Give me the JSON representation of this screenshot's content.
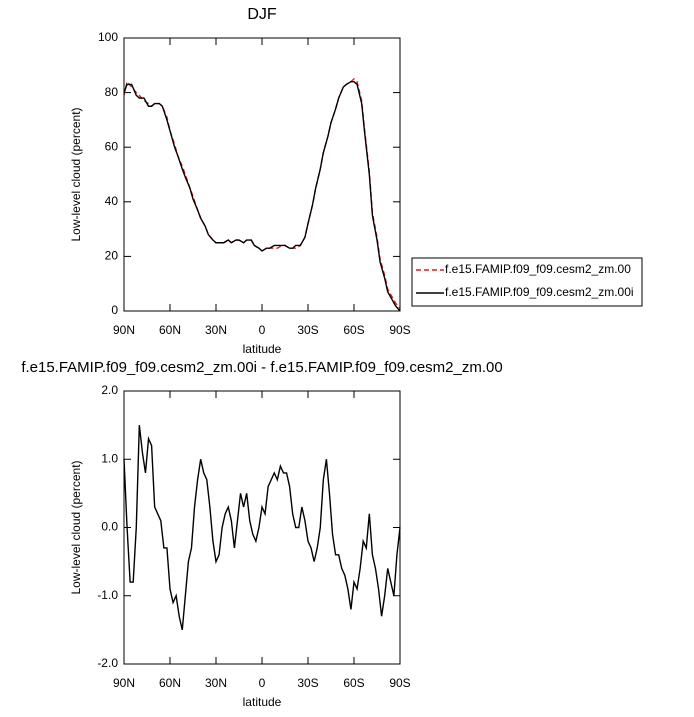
{
  "chart_data": [
    {
      "type": "line",
      "title": "DJF",
      "xlabel": "latitude",
      "ylabel": "Low-level cloud (percent)",
      "x": [
        90,
        88,
        85,
        82,
        80,
        77,
        74,
        72,
        70,
        67,
        65,
        62,
        60,
        57,
        55,
        52,
        50,
        47,
        45,
        42,
        40,
        37,
        35,
        32,
        30,
        27,
        25,
        22,
        20,
        17,
        15,
        12,
        10,
        7,
        5,
        2,
        0,
        -3,
        -5,
        -8,
        -10,
        -13,
        -15,
        -18,
        -20,
        -22,
        -25,
        -28,
        -30,
        -33,
        -35,
        -38,
        -40,
        -43,
        -45,
        -48,
        -50,
        -53,
        -55,
        -58,
        -60,
        -62,
        -65,
        -67,
        -70,
        -72,
        -75,
        -77,
        -80,
        -82,
        -85,
        -87,
        -90
      ],
      "series": [
        {
          "name": "f.e15.FAMIP.f09_f09.cesm2_zm.00",
          "color": "#e41a1c",
          "line_style": "dashed",
          "values": [
            79,
            84,
            82,
            80,
            79,
            77,
            76,
            75,
            76,
            76,
            75,
            71,
            66,
            61,
            57,
            53,
            50,
            45,
            42,
            37,
            34,
            31,
            28,
            26,
            25,
            25,
            25,
            26,
            25,
            26,
            26,
            25,
            26,
            26,
            24,
            23,
            22,
            23,
            23,
            23,
            23,
            24,
            24,
            23,
            23,
            23,
            24,
            27,
            32,
            39,
            45,
            52,
            58,
            64,
            69,
            74,
            78,
            82,
            83,
            84,
            85,
            84,
            77,
            66,
            51,
            36,
            27,
            19,
            13,
            8,
            5,
            3,
            1
          ]
        },
        {
          "name": "f.e15.FAMIP.f09_f09.cesm2_zm.00i",
          "color": "#000000",
          "line_style": "solid",
          "values": [
            80,
            83,
            83,
            79,
            78,
            78,
            75,
            75,
            76,
            76,
            75,
            70,
            66,
            60,
            57,
            52,
            49,
            45,
            41,
            37,
            34,
            31,
            28,
            26,
            25,
            25,
            25,
            26,
            25,
            26,
            26,
            25,
            26,
            26,
            24,
            23,
            22,
            23,
            23,
            24,
            24,
            24,
            24,
            23,
            23,
            24,
            24,
            27,
            32,
            39,
            45,
            52,
            58,
            64,
            69,
            74,
            78,
            82,
            83,
            84,
            84,
            83,
            76,
            65,
            50,
            35,
            26,
            18,
            12,
            7,
            4,
            2,
            0
          ]
        }
      ],
      "xlim": [
        90,
        -90
      ],
      "xticks": [
        {
          "value": 90,
          "label": "90N"
        },
        {
          "value": 60,
          "label": "60N"
        },
        {
          "value": 30,
          "label": "30N"
        },
        0,
        {
          "value": -30,
          "label": "30S"
        },
        {
          "value": -60,
          "label": "60S"
        },
        {
          "value": -90,
          "label": "90S"
        }
      ],
      "ylim": [
        0,
        100
      ],
      "yticks": [
        0,
        20,
        40,
        60,
        80,
        100
      ],
      "legend": "outside-right"
    },
    {
      "type": "line",
      "title": "f.e15.FAMIP.f09_f09.cesm2_zm.00i - f.e15.FAMIP.f09_f09.cesm2_zm.00",
      "xlabel": "latitude",
      "ylabel": "Low-level cloud (percent)",
      "x": [
        90,
        88,
        86,
        84,
        82,
        80,
        78,
        76,
        74,
        72,
        70,
        68,
        66,
        64,
        62,
        60,
        58,
        56,
        54,
        52,
        50,
        48,
        46,
        44,
        42,
        40,
        38,
        36,
        34,
        32,
        30,
        28,
        26,
        24,
        22,
        20,
        18,
        16,
        14,
        12,
        10,
        8,
        6,
        4,
        2,
        0,
        -2,
        -4,
        -6,
        -8,
        -10,
        -12,
        -14,
        -16,
        -18,
        -20,
        -22,
        -24,
        -26,
        -28,
        -30,
        -32,
        -34,
        -36,
        -38,
        -40,
        -42,
        -44,
        -46,
        -48,
        -50,
        -52,
        -54,
        -56,
        -58,
        -60,
        -62,
        -64,
        -66,
        -68,
        -70,
        -72,
        -74,
        -76,
        -78,
        -80,
        -82,
        -84,
        -86,
        -88,
        -90
      ],
      "series": [
        {
          "color": "#000000",
          "line_style": "solid",
          "values": [
            1.0,
            0.0,
            -0.8,
            -0.8,
            0.0,
            1.5,
            1.1,
            0.8,
            1.3,
            1.2,
            0.3,
            0.2,
            0.1,
            -0.3,
            -0.3,
            -0.9,
            -1.1,
            -1.0,
            -1.3,
            -1.5,
            -1.0,
            -0.5,
            -0.3,
            0.3,
            0.7,
            1.0,
            0.8,
            0.7,
            0.3,
            -0.2,
            -0.5,
            -0.4,
            0.0,
            0.2,
            0.3,
            0.1,
            -0.3,
            0.1,
            0.5,
            0.3,
            0.5,
            0.1,
            -0.1,
            -0.2,
            0.0,
            0.3,
            0.2,
            0.6,
            0.7,
            0.8,
            0.7,
            0.9,
            0.8,
            0.8,
            0.6,
            0.2,
            0.0,
            0.0,
            0.3,
            0.1,
            -0.2,
            -0.3,
            -0.5,
            -0.3,
            0.0,
            0.7,
            1.0,
            0.5,
            -0.1,
            -0.4,
            -0.4,
            -0.6,
            -0.7,
            -0.9,
            -1.2,
            -0.8,
            -0.9,
            -0.6,
            -0.2,
            -0.3,
            0.2,
            -0.4,
            -0.6,
            -0.9,
            -1.3,
            -1.0,
            -0.6,
            -0.8,
            -1.0,
            -0.4,
            0.0
          ]
        }
      ],
      "xlim": [
        90,
        -90
      ],
      "xticks": [
        {
          "value": 90,
          "label": "90N"
        },
        {
          "value": 60,
          "label": "60N"
        },
        {
          "value": 30,
          "label": "30N"
        },
        0,
        {
          "value": -30,
          "label": "30S"
        },
        {
          "value": -60,
          "label": "60S"
        },
        {
          "value": -90,
          "label": "90S"
        }
      ],
      "ylim": [
        -2,
        2
      ],
      "yticks": [
        {
          "value": -2,
          "label": "-2.0"
        },
        {
          "value": -1,
          "label": "-1.0"
        },
        {
          "value": 0,
          "label": "0.0"
        },
        {
          "value": 1,
          "label": "1.0"
        },
        {
          "value": 2,
          "label": "2.0"
        }
      ]
    }
  ]
}
